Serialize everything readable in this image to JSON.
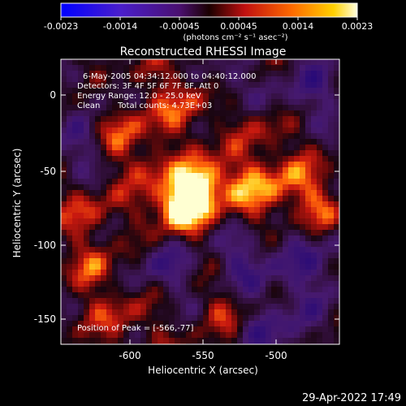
{
  "colorbar": {
    "tick_labels": [
      "-0.0023",
      "-0.0014",
      "-0.00045",
      "0.00045",
      "0.0014",
      "0.0023"
    ],
    "unit_label": "(photons cm⁻² s⁻¹ asec⁻²)",
    "range": [
      -0.0023,
      0.0023
    ]
  },
  "plot": {
    "title": "Reconstructed RHESSI Image",
    "xlabel": "Heliocentric X (arcsec)",
    "ylabel": "Heliocentric Y (arcsec)",
    "x_ticks": [
      "-600",
      "-550",
      "-500"
    ],
    "y_ticks": [
      "0",
      "-50",
      "-100",
      "-150"
    ],
    "x_range": [
      -648,
      -488
    ],
    "y_range": [
      -168,
      18
    ]
  },
  "annotations": {
    "time_range": "6-May-2005 04:34:12.000 to 04:40:12.000",
    "detectors": "Detectors: 3F 4F 5F 6F 7F 8F, Att 0",
    "energy": "Energy Range: 12.0 - 25.0 keV",
    "method": "Clean",
    "counts": "Total counts: 4.73E+03",
    "peak": "Position of Peak = [-566,-77]"
  },
  "footer": {
    "timestamp": "29-Apr-2022 17:49"
  }
}
